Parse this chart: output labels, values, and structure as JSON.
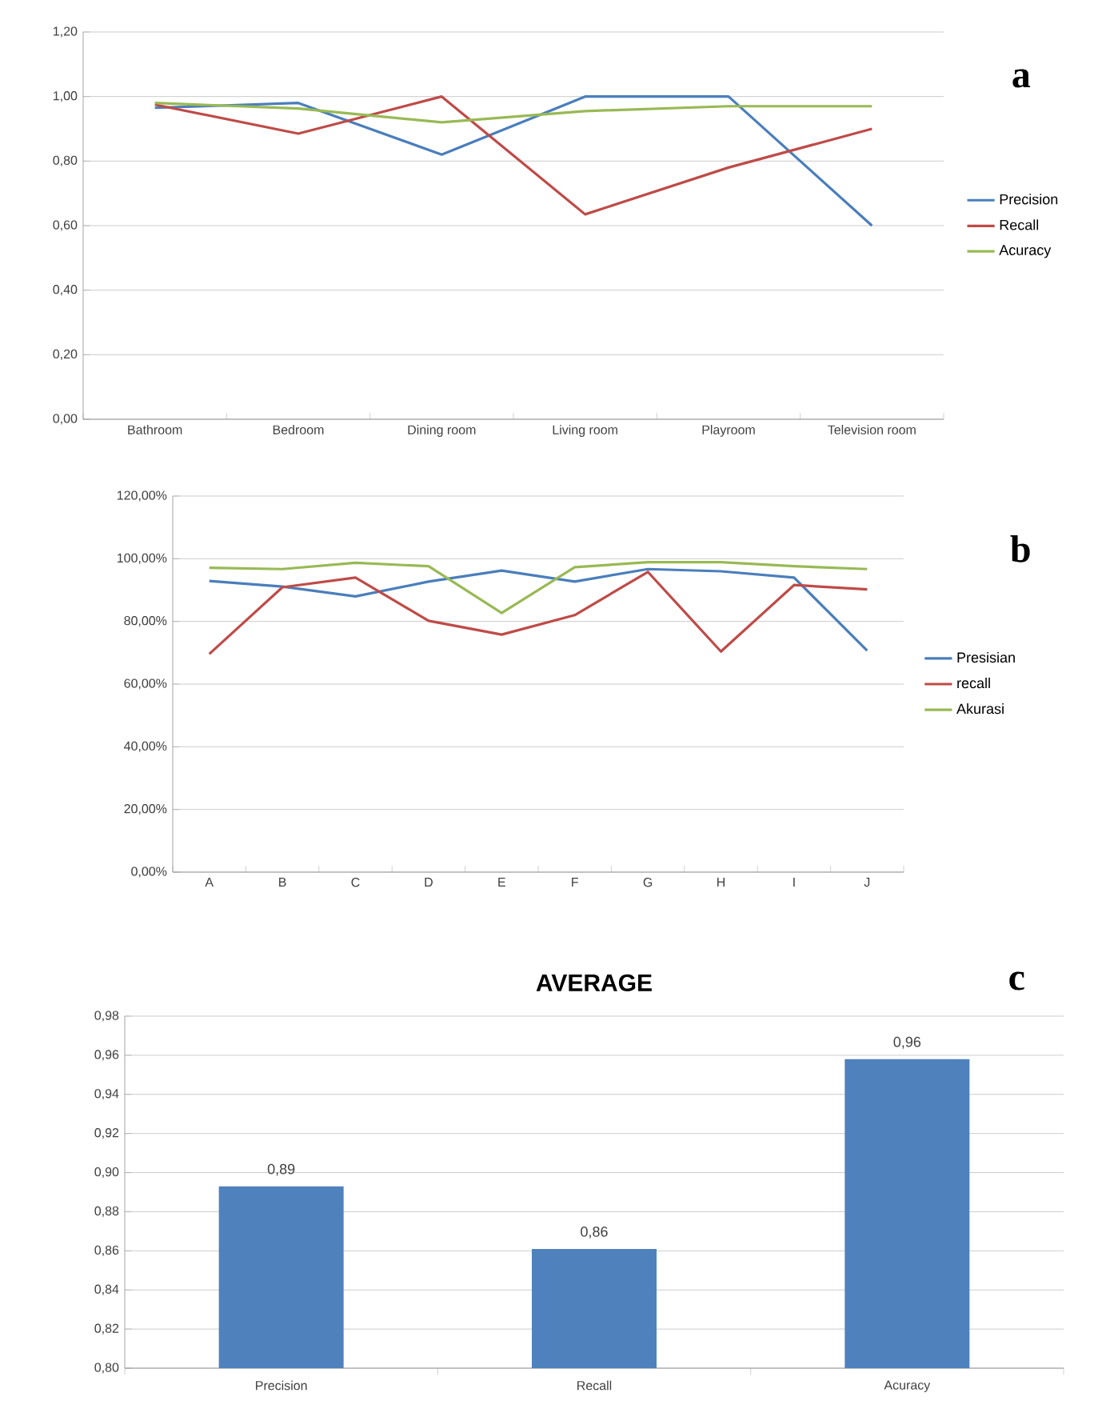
{
  "chart_data": [
    {
      "type": "line",
      "categories": [
        "Bathroom",
        "Bedroom",
        "Dining room",
        "Living room",
        "Playroom",
        "Television room"
      ],
      "series": [
        {
          "name": "Precision",
          "color": "#4a7ebb",
          "values": [
            0.965,
            0.98,
            0.82,
            1.0,
            1.0,
            0.6
          ]
        },
        {
          "name": "Recall",
          "color": "#be4b48",
          "values": [
            0.975,
            0.885,
            1.0,
            0.635,
            0.78,
            0.9
          ]
        },
        {
          "name": "Acuracy",
          "color": "#98b954",
          "values": [
            0.98,
            0.963,
            0.92,
            0.955,
            0.97,
            0.97
          ]
        }
      ],
      "ylim": [
        0,
        1.2
      ],
      "yticks": [
        {
          "value": 0,
          "label": "0,00"
        },
        {
          "value": 0.2,
          "label": "0,20"
        },
        {
          "value": 0.4,
          "label": "0,40"
        },
        {
          "value": 0.6,
          "label": "0,60"
        },
        {
          "value": 0.8,
          "label": "0,80"
        },
        {
          "value": 1.0,
          "label": "1,00"
        },
        {
          "value": 1.2,
          "label": "1,20"
        }
      ],
      "grid": "y",
      "legend": "right",
      "marker": "none",
      "line_style": "solid",
      "annotations": [
        "a"
      ]
    },
    {
      "type": "line",
      "categories": [
        "A",
        "B",
        "C",
        "D",
        "E",
        "F",
        "G",
        "H",
        "I",
        "J"
      ],
      "series": [
        {
          "name": "Presisian",
          "color": "#4a7ebb",
          "values": [
            92.9,
            91.1,
            88,
            92.7,
            96.2,
            92.7,
            96.7,
            96,
            94,
            70.7
          ]
        },
        {
          "name": "recall",
          "color": "#be4b48",
          "values": [
            69.6,
            90.9,
            94,
            80.2,
            75.8,
            82,
            95.8,
            70.4,
            91.6,
            90.2
          ]
        },
        {
          "name": "Akurasi",
          "color": "#98b954",
          "values": [
            97.1,
            96.7,
            98.7,
            97.6,
            82.7,
            97.3,
            98.9,
            98.9,
            97.6,
            96.7
          ]
        }
      ],
      "ylim": [
        0,
        120
      ],
      "yticks": [
        {
          "value": 0,
          "label": "0,00%"
        },
        {
          "value": 20,
          "label": "20,00%"
        },
        {
          "value": 40,
          "label": "40,00%"
        },
        {
          "value": 60,
          "label": "60,00%"
        },
        {
          "value": 80,
          "label": "80,00%"
        },
        {
          "value": 100,
          "label": "100,00%"
        },
        {
          "value": 120,
          "label": "120,00%"
        }
      ],
      "grid": "y",
      "legend": "right",
      "marker": "none",
      "line_style": "solid",
      "annotations": [
        "b"
      ]
    },
    {
      "type": "bar",
      "title": "AVERAGE",
      "categories": [
        "Precision",
        "Recall",
        "Acuracy"
      ],
      "values": [
        0.893,
        0.861,
        0.958
      ],
      "color": "#4f81bd",
      "value_labels": [
        "0,89",
        "0,86",
        "0,96"
      ],
      "ylim": [
        0.8,
        0.98
      ],
      "yticks": [
        {
          "value": 0.8,
          "label": "0,80"
        },
        {
          "value": 0.82,
          "label": "0,82"
        },
        {
          "value": 0.84,
          "label": "0,84"
        },
        {
          "value": 0.86,
          "label": "0,86"
        },
        {
          "value": 0.88,
          "label": "0,88"
        },
        {
          "value": 0.9,
          "label": "0,90"
        },
        {
          "value": 0.92,
          "label": "0,92"
        },
        {
          "value": 0.94,
          "label": "0,94"
        },
        {
          "value": 0.96,
          "label": "0,96"
        },
        {
          "value": 0.98,
          "label": "0,98"
        }
      ],
      "grid": "y",
      "legend": false,
      "annotations": [
        "c"
      ]
    }
  ]
}
